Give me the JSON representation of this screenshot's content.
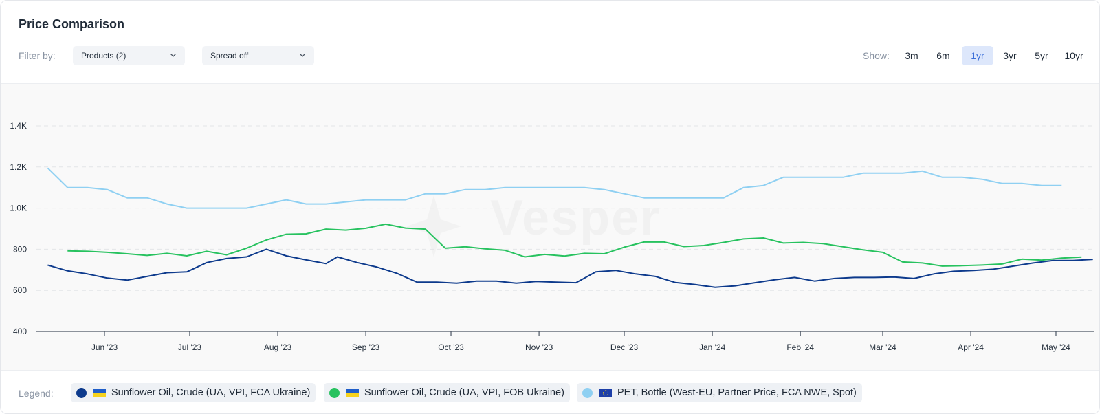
{
  "title": "Price Comparison",
  "filter": {
    "label": "Filter by:",
    "products": "Products (2)",
    "spread": "Spread off"
  },
  "show": {
    "label": "Show:",
    "ranges": [
      "3m",
      "6m",
      "1yr",
      "3yr",
      "5yr",
      "10yr"
    ],
    "active": "1yr"
  },
  "watermark": "Vesper",
  "legend": {
    "label": "Legend:",
    "items": [
      {
        "text": "Sunflower Oil, Crude (UA, VPI, FCA Ukraine)",
        "color": "#0d3a8c",
        "flag": "ukraine"
      },
      {
        "text": "Sunflower Oil, Crude (UA, VPI, FOB Ukraine)",
        "color": "#27c25f",
        "flag": "ukraine"
      },
      {
        "text": "PET, Bottle (West-EU, Partner Price, FCA NWE, Spot)",
        "color": "#8fd0f2",
        "flag": "eu"
      }
    ]
  },
  "chart_data": {
    "type": "line",
    "ylim": [
      400,
      1400
    ],
    "y_ticks": [
      400,
      600,
      800,
      1000,
      1200,
      1400
    ],
    "y_tick_labels": [
      "400",
      "600",
      "800",
      "1.0K",
      "1.2K",
      "1.4K"
    ],
    "x_ticks": [
      {
        "label": "Jun '23",
        "date": "2023-06-01"
      },
      {
        "label": "Jul '23",
        "date": "2023-07-01"
      },
      {
        "label": "Aug '23",
        "date": "2023-08-01"
      },
      {
        "label": "Sep '23",
        "date": "2023-09-01"
      },
      {
        "label": "Oct '23",
        "date": "2023-10-01"
      },
      {
        "label": "Nov '23",
        "date": "2023-11-01"
      },
      {
        "label": "Dec '23",
        "date": "2023-12-01"
      },
      {
        "label": "Jan '24",
        "date": "2024-01-01"
      },
      {
        "label": "Feb '24",
        "date": "2024-02-01"
      },
      {
        "label": "Mar '24",
        "date": "2024-03-01"
      },
      {
        "label": "Apr '24",
        "date": "2024-04-01"
      },
      {
        "label": "May '24",
        "date": "2024-05-01"
      }
    ],
    "grid": true,
    "legend_position": "bottom",
    "series": [
      {
        "name": "Sunflower Oil, Crude (UA, VPI, FCA Ukraine)",
        "color": "#0d3a8c",
        "points": [
          [
            "2023-05-12",
            723
          ],
          [
            "2023-05-19",
            695
          ],
          [
            "2023-05-26",
            680
          ],
          [
            "2023-06-02",
            660
          ],
          [
            "2023-06-09",
            650
          ],
          [
            "2023-06-16",
            668
          ],
          [
            "2023-06-23",
            686
          ],
          [
            "2023-06-30",
            690
          ],
          [
            "2023-07-07",
            735
          ],
          [
            "2023-07-14",
            755
          ],
          [
            "2023-07-21",
            763
          ],
          [
            "2023-07-28",
            800
          ],
          [
            "2023-08-04",
            768
          ],
          [
            "2023-08-11",
            748
          ],
          [
            "2023-08-18",
            730
          ],
          [
            "2023-08-22",
            763
          ],
          [
            "2023-08-29",
            735
          ],
          [
            "2023-09-05",
            713
          ],
          [
            "2023-09-12",
            683
          ],
          [
            "2023-09-19",
            640
          ],
          [
            "2023-09-26",
            640
          ],
          [
            "2023-10-03",
            635
          ],
          [
            "2023-10-10",
            645
          ],
          [
            "2023-10-17",
            645
          ],
          [
            "2023-10-24",
            635
          ],
          [
            "2023-10-31",
            643
          ],
          [
            "2023-11-07",
            640
          ],
          [
            "2023-11-14",
            637
          ],
          [
            "2023-11-21",
            690
          ],
          [
            "2023-11-28",
            697
          ],
          [
            "2023-12-05",
            680
          ],
          [
            "2023-12-12",
            668
          ],
          [
            "2023-12-19",
            638
          ],
          [
            "2023-12-26",
            628
          ],
          [
            "2024-01-02",
            615
          ],
          [
            "2024-01-09",
            622
          ],
          [
            "2024-01-16",
            637
          ],
          [
            "2024-01-23",
            652
          ],
          [
            "2024-01-30",
            663
          ],
          [
            "2024-02-06",
            645
          ],
          [
            "2024-02-13",
            658
          ],
          [
            "2024-02-20",
            663
          ],
          [
            "2024-02-27",
            663
          ],
          [
            "2024-03-05",
            665
          ],
          [
            "2024-03-12",
            658
          ],
          [
            "2024-03-19",
            680
          ],
          [
            "2024-03-26",
            693
          ],
          [
            "2024-04-02",
            697
          ],
          [
            "2024-04-09",
            703
          ],
          [
            "2024-04-16",
            718
          ],
          [
            "2024-04-23",
            733
          ],
          [
            "2024-04-30",
            745
          ],
          [
            "2024-05-07",
            745
          ],
          [
            "2024-05-14",
            751
          ]
        ]
      },
      {
        "name": "Sunflower Oil, Crude (UA, VPI, FOB Ukraine)",
        "color": "#27c25f",
        "points": [
          [
            "2023-05-19",
            792
          ],
          [
            "2023-05-26",
            790
          ],
          [
            "2023-06-02",
            785
          ],
          [
            "2023-06-09",
            778
          ],
          [
            "2023-06-16",
            770
          ],
          [
            "2023-06-23",
            780
          ],
          [
            "2023-06-30",
            768
          ],
          [
            "2023-07-07",
            790
          ],
          [
            "2023-07-14",
            773
          ],
          [
            "2023-07-21",
            805
          ],
          [
            "2023-07-28",
            845
          ],
          [
            "2023-08-04",
            873
          ],
          [
            "2023-08-11",
            875
          ],
          [
            "2023-08-18",
            898
          ],
          [
            "2023-08-25",
            893
          ],
          [
            "2023-09-01",
            902
          ],
          [
            "2023-09-08",
            922
          ],
          [
            "2023-09-15",
            903
          ],
          [
            "2023-09-22",
            898
          ],
          [
            "2023-09-29",
            805
          ],
          [
            "2023-10-06",
            812
          ],
          [
            "2023-10-13",
            802
          ],
          [
            "2023-10-20",
            795
          ],
          [
            "2023-10-27",
            763
          ],
          [
            "2023-11-03",
            775
          ],
          [
            "2023-11-10",
            767
          ],
          [
            "2023-11-17",
            780
          ],
          [
            "2023-11-24",
            778
          ],
          [
            "2023-12-01",
            810
          ],
          [
            "2023-12-08",
            835
          ],
          [
            "2023-12-15",
            835
          ],
          [
            "2023-12-22",
            813
          ],
          [
            "2023-12-29",
            818
          ],
          [
            "2024-01-05",
            833
          ],
          [
            "2024-01-12",
            850
          ],
          [
            "2024-01-19",
            855
          ],
          [
            "2024-01-26",
            830
          ],
          [
            "2024-02-02",
            833
          ],
          [
            "2024-02-09",
            827
          ],
          [
            "2024-02-16",
            812
          ],
          [
            "2024-02-23",
            797
          ],
          [
            "2024-03-01",
            785
          ],
          [
            "2024-03-08",
            738
          ],
          [
            "2024-03-15",
            733
          ],
          [
            "2024-03-22",
            718
          ],
          [
            "2024-03-29",
            720
          ],
          [
            "2024-04-05",
            723
          ],
          [
            "2024-04-12",
            728
          ],
          [
            "2024-04-19",
            752
          ],
          [
            "2024-04-26",
            747
          ],
          [
            "2024-05-03",
            757
          ],
          [
            "2024-05-10",
            762
          ]
        ]
      },
      {
        "name": "PET, Bottle (West-EU, Partner Price, FCA NWE, Spot)",
        "color": "#8fd0f2",
        "points": [
          [
            "2023-05-12",
            1195
          ],
          [
            "2023-05-19",
            1100
          ],
          [
            "2023-05-26",
            1100
          ],
          [
            "2023-06-02",
            1090
          ],
          [
            "2023-06-09",
            1050
          ],
          [
            "2023-06-16",
            1050
          ],
          [
            "2023-06-23",
            1020
          ],
          [
            "2023-06-30",
            1000
          ],
          [
            "2023-07-07",
            1000
          ],
          [
            "2023-07-14",
            1000
          ],
          [
            "2023-07-21",
            1000
          ],
          [
            "2023-07-28",
            1020
          ],
          [
            "2023-08-04",
            1040
          ],
          [
            "2023-08-11",
            1020
          ],
          [
            "2023-08-18",
            1020
          ],
          [
            "2023-08-25",
            1030
          ],
          [
            "2023-09-01",
            1040
          ],
          [
            "2023-09-08",
            1040
          ],
          [
            "2023-09-15",
            1040
          ],
          [
            "2023-09-22",
            1070
          ],
          [
            "2023-09-29",
            1070
          ],
          [
            "2023-10-06",
            1090
          ],
          [
            "2023-10-13",
            1090
          ],
          [
            "2023-10-20",
            1100
          ],
          [
            "2023-10-27",
            1100
          ],
          [
            "2023-11-03",
            1100
          ],
          [
            "2023-11-10",
            1100
          ],
          [
            "2023-11-17",
            1100
          ],
          [
            "2023-11-24",
            1090
          ],
          [
            "2023-12-01",
            1070
          ],
          [
            "2023-12-08",
            1050
          ],
          [
            "2023-12-15",
            1050
          ],
          [
            "2023-12-22",
            1050
          ],
          [
            "2023-12-29",
            1050
          ],
          [
            "2024-01-05",
            1050
          ],
          [
            "2024-01-12",
            1100
          ],
          [
            "2024-01-19",
            1110
          ],
          [
            "2024-01-26",
            1150
          ],
          [
            "2024-02-02",
            1150
          ],
          [
            "2024-02-09",
            1150
          ],
          [
            "2024-02-16",
            1150
          ],
          [
            "2024-02-23",
            1170
          ],
          [
            "2024-03-01",
            1170
          ],
          [
            "2024-03-08",
            1170
          ],
          [
            "2024-03-15",
            1180
          ],
          [
            "2024-03-22",
            1150
          ],
          [
            "2024-03-29",
            1150
          ],
          [
            "2024-04-05",
            1140
          ],
          [
            "2024-04-12",
            1120
          ],
          [
            "2024-04-19",
            1120
          ],
          [
            "2024-04-26",
            1110
          ],
          [
            "2024-05-03",
            1110
          ]
        ]
      }
    ]
  }
}
